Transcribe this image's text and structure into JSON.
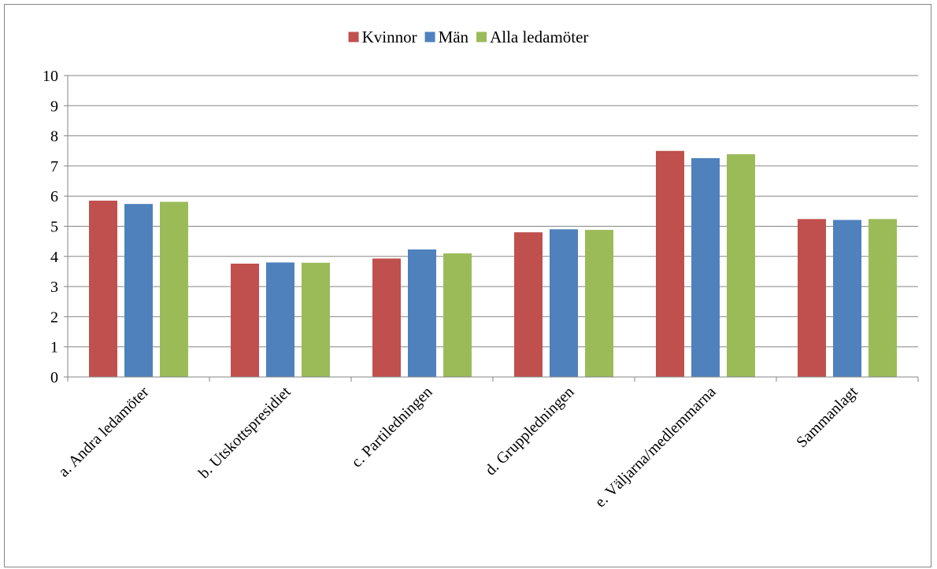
{
  "chart_data": {
    "type": "bar",
    "title": "",
    "xlabel": "",
    "ylabel": "",
    "ylim": [
      0,
      10
    ],
    "yticks": [
      0,
      1,
      2,
      3,
      4,
      5,
      6,
      7,
      8,
      9,
      10
    ],
    "grid": true,
    "legend_position": "top",
    "categories": [
      "a. Andra ledamöter",
      "b. Utskottspresidiet",
      "c. Partiledningen",
      "d. Gruppledningen",
      "e. Väljarna/medlemmarna",
      "Sammanlagt"
    ],
    "series": [
      {
        "name": "Kvinnor",
        "color": "#C0504D",
        "values": [
          5.85,
          3.76,
          3.93,
          4.8,
          7.5,
          5.24
        ]
      },
      {
        "name": "Män",
        "color": "#4F81BD",
        "values": [
          5.74,
          3.8,
          4.23,
          4.9,
          7.26,
          5.21
        ]
      },
      {
        "name": "Alla ledamöter",
        "color": "#9BBB59",
        "values": [
          5.81,
          3.79,
          4.1,
          4.88,
          7.39,
          5.24
        ]
      }
    ]
  }
}
